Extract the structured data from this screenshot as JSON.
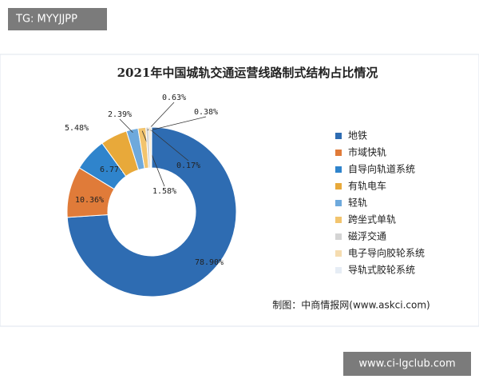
{
  "overlay_top": "TG: MYYJJPP",
  "overlay_bottom": "www.ci-lgclub.com",
  "chart_data": {
    "type": "pie",
    "title": "2021年中国城轨交通运营线路制式结构占比情况",
    "source": "制图：中商情报网(www.askci.com)",
    "categories": [
      "地铁",
      "市域快轨",
      "自导向轨道系统",
      "有轨电车",
      "轻轨",
      "跨坐式单轨",
      "磁浮交通",
      "电子导向胶轮系统",
      "导轨式胶轮系统"
    ],
    "values": [
      78.9,
      10.36,
      6.77,
      5.48,
      2.39,
      1.58,
      0.63,
      0.38,
      0.17
    ],
    "value_labels": [
      "78.90%",
      "10.36%",
      "6.77%",
      "5.48%",
      "2.39%",
      "1.58%",
      "0.63%",
      "0.38%",
      "0.17%"
    ],
    "colors": [
      "#2e6cb2",
      "#e07b39",
      "#2f84cc",
      "#e8a93a",
      "#6ea9dc",
      "#f2c46e",
      "#d4d4d4",
      "#f5dcb0",
      "#e6edf5"
    ],
    "legend": "right"
  }
}
